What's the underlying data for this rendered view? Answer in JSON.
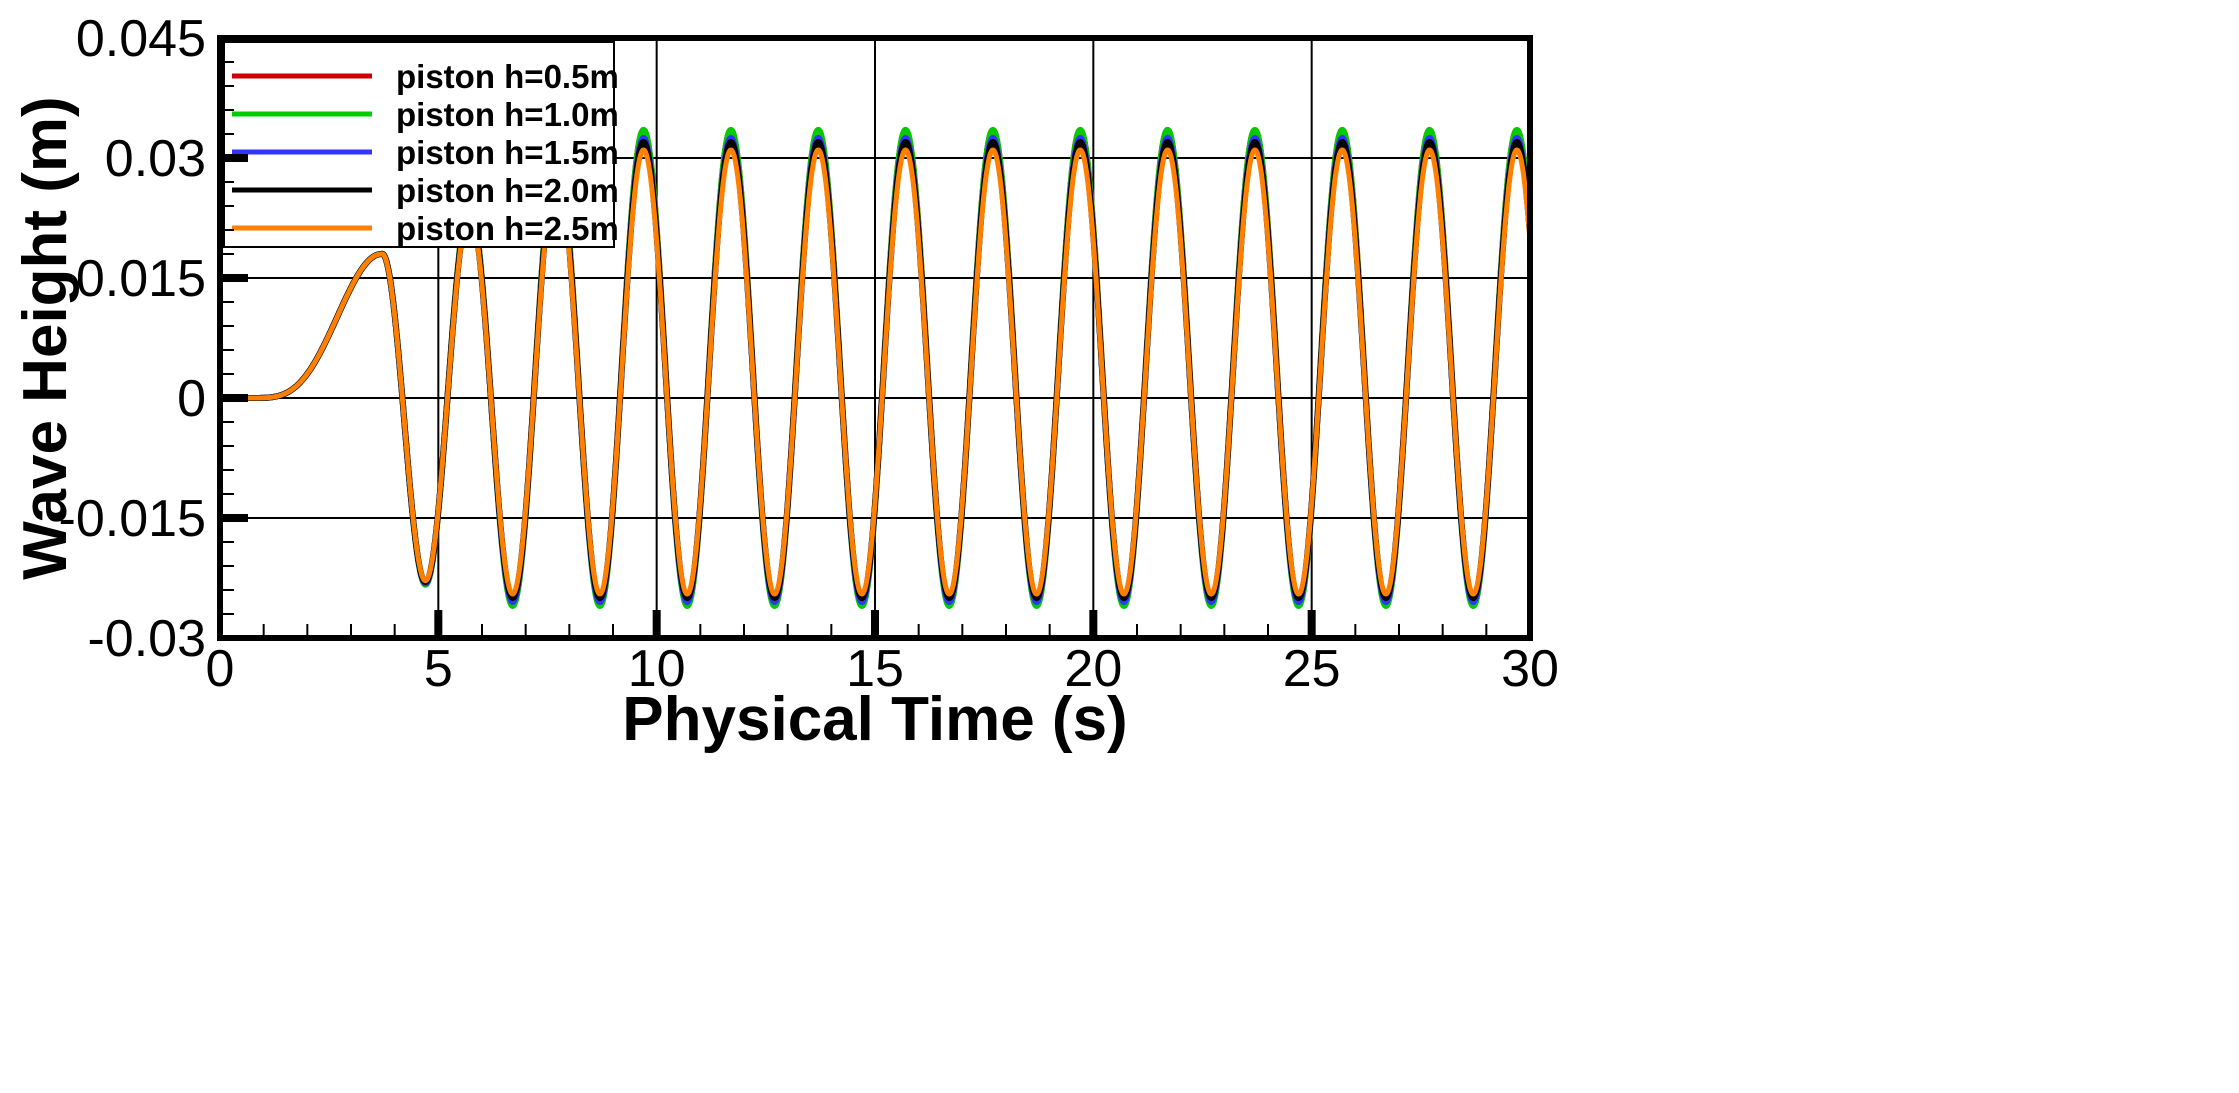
{
  "chart_data": {
    "type": "line",
    "title": "",
    "xlabel": "Physical Time (s)",
    "ylabel": "Wave Height (m)",
    "xlim": [
      0,
      30
    ],
    "ylim": [
      -0.03,
      0.045
    ],
    "xticks": [
      0,
      5,
      10,
      15,
      20,
      25,
      30
    ],
    "xtick_labels": [
      "0",
      "5",
      "10",
      "15",
      "20",
      "25",
      "30"
    ],
    "yticks": [
      -0.03,
      -0.015,
      0,
      0.015,
      0.03,
      0.045
    ],
    "ytick_labels": [
      "-0.03",
      "-0.015",
      "0",
      "0.015",
      "0.03",
      "0.045"
    ],
    "grid": true,
    "legend_position": "top-left",
    "wave": {
      "start_time": 0.65,
      "ramp_end": 3.7,
      "first_peak_time": 3.7,
      "first_peak_height": 0.018,
      "period": 2.0,
      "crest": 0.031,
      "trough": -0.025,
      "first_trough_height": -0.022
    },
    "series": [
      {
        "name": "piston h=0.5m",
        "color": "#cc0000",
        "crest": 0.0335,
        "trough": -0.0255
      },
      {
        "name": "piston h=1.0m",
        "color": "#00cc00",
        "crest": 0.0335,
        "trough": -0.026
      },
      {
        "name": "piston h=1.5m",
        "color": "#3333ff",
        "crest": 0.0325,
        "trough": -0.0255
      },
      {
        "name": "piston h=2.0m",
        "color": "#000000",
        "crest": 0.032,
        "trough": -0.025
      },
      {
        "name": "piston h=2.5m",
        "color": "#ff8000",
        "crest": 0.031,
        "trough": -0.0245
      }
    ]
  }
}
